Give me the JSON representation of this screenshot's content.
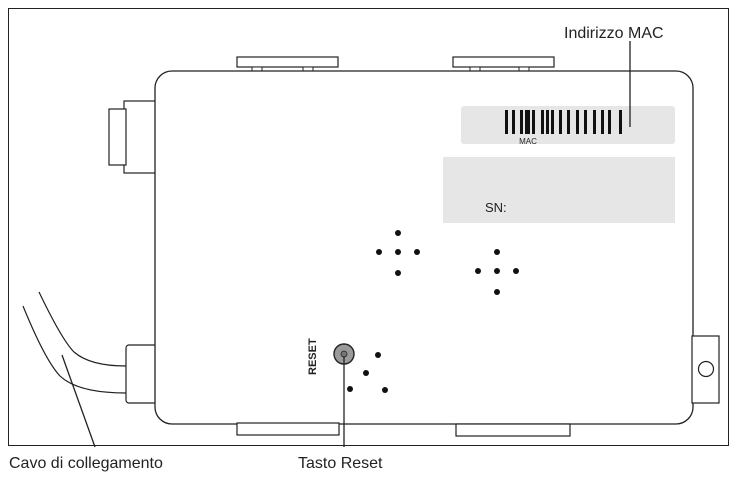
{
  "labels": {
    "mac_address": "Indirizzo MAC",
    "mac_small": "MAC",
    "serial_number": "SN:",
    "reset_button": "RESET",
    "reset_callout": "Tasto Reset",
    "cable_callout": "Cavo di collegamento"
  },
  "colors": {
    "line": "#222222",
    "label_panel": "#e6e6e6",
    "reset_button_fill": "#9a9a9a",
    "background": "#ffffff"
  }
}
